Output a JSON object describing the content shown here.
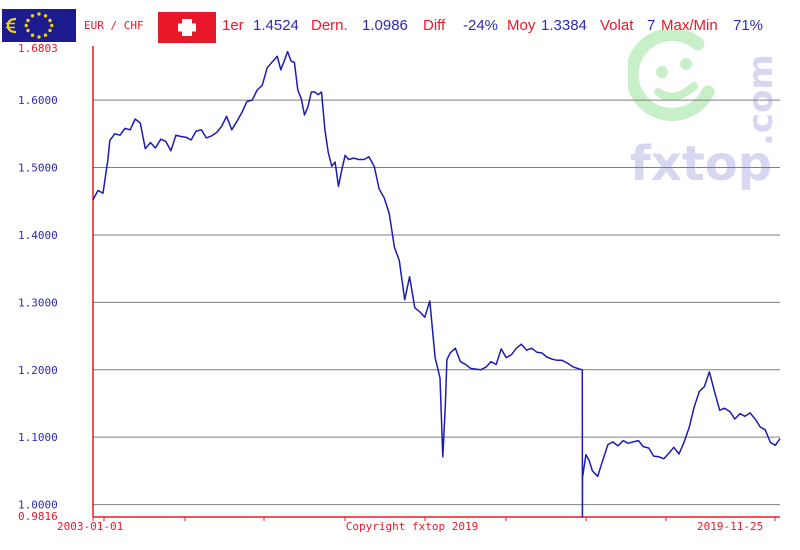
{
  "header": {
    "pair_label": "EUR / CHF",
    "first_label": "1er",
    "first_value": "1.4524",
    "last_label": "Dern.",
    "last_value": "1.0986",
    "diff_label": "Diff",
    "diff_value": "-24%",
    "avg_label": "Moy",
    "avg_value": "1.3384",
    "volat_label": "Volat",
    "volat_value": "7",
    "maxmin_label": "Max/Min",
    "maxmin_value": "71%"
  },
  "watermark": {
    "brand": "fxtop",
    "domain": ".com"
  },
  "colors": {
    "line": "#1c1cb4",
    "axis": "#e8182a",
    "grid": "#7f7f7f",
    "label": "#2b2bb6",
    "watermark": "#d7d7f2"
  },
  "icons": [
    "euro-flag-icon",
    "swiss-flag-icon",
    "fxtop-smiley-icon"
  ],
  "chart_data": {
    "type": "line",
    "title": "",
    "xlabel": "",
    "ylabel": "",
    "xlim": [
      "2003-01-01",
      "2019-11-25"
    ],
    "ylim": [
      0.9816,
      1.6803
    ],
    "grid": true,
    "x_ticks": [
      "2003-01-01",
      "2019-11-25"
    ],
    "x_caption": "Copyright fxtop 2019",
    "y_ticks": [
      "1.0000",
      "1.1000",
      "1.2000",
      "1.3000",
      "1.4000",
      "1.5000",
      "1.6000"
    ],
    "y_bounds": [
      "1.6803",
      "0.9816"
    ],
    "series": [
      {
        "x": [
          "2003-01-01",
          "2003-02-15",
          "2003-04-01",
          "2003-05-15",
          "2003-06-01",
          "2003-07-15",
          "2003-09-01",
          "2003-10-15",
          "2003-12-01",
          "2004-01-15",
          "2004-03-01",
          "2004-04-15",
          "2004-06-01",
          "2004-07-15",
          "2004-09-01",
          "2004-10-15",
          "2004-12-01",
          "2005-01-15",
          "2005-03-01",
          "2005-04-15",
          "2005-06-01",
          "2005-07-15",
          "2005-09-01",
          "2005-10-15",
          "2005-12-01",
          "2006-01-15",
          "2006-03-01",
          "2006-04-15",
          "2006-06-01",
          "2006-07-15",
          "2006-09-01",
          "2006-10-15",
          "2006-12-01",
          "2007-01-15",
          "2007-03-01",
          "2007-04-15",
          "2007-06-01",
          "2007-07-15",
          "2007-08-15",
          "2007-09-15",
          "2007-10-15",
          "2007-11-15",
          "2007-12-15",
          "2008-01-15",
          "2008-02-15",
          "2008-03-15",
          "2008-04-15",
          "2008-05-15",
          "2008-06-15",
          "2008-07-15",
          "2008-08-15",
          "2008-09-15",
          "2008-10-15",
          "2008-11-15",
          "2008-12-15",
          "2009-01-15",
          "2009-02-15",
          "2009-03-15",
          "2009-04-15",
          "2009-06-01",
          "2009-07-15",
          "2009-09-01",
          "2009-10-15",
          "2009-12-01",
          "2010-01-15",
          "2010-03-01",
          "2010-04-15",
          "2010-06-01",
          "2010-07-15",
          "2010-09-01",
          "2010-10-15",
          "2010-12-01",
          "2011-01-15",
          "2011-03-01",
          "2011-04-15",
          "2011-06-01",
          "2011-07-15",
          "2011-08-10",
          "2011-09-01",
          "2011-09-15",
          "2011-10-15",
          "2011-12-01",
          "2012-01-15",
          "2012-03-01",
          "2012-04-15",
          "2012-06-01",
          "2012-07-15",
          "2012-09-01",
          "2012-10-15",
          "2012-12-01",
          "2013-01-15",
          "2013-03-01",
          "2013-04-15",
          "2013-06-01",
          "2013-07-15",
          "2013-09-01",
          "2013-10-15",
          "2013-12-01",
          "2014-01-15",
          "2014-03-01",
          "2014-04-15",
          "2014-06-01",
          "2014-07-15",
          "2014-09-01",
          "2014-10-15",
          "2014-12-01",
          "2015-01-14",
          "2015-01-15",
          "2015-01-16",
          "2015-02-15",
          "2015-03-15",
          "2015-04-15",
          "2015-06-01",
          "2015-07-15",
          "2015-09-01",
          "2015-10-15",
          "2015-12-01",
          "2016-01-15",
          "2016-03-01",
          "2016-04-15",
          "2016-06-01",
          "2016-07-15",
          "2016-09-01",
          "2016-10-15",
          "2016-12-01",
          "2017-01-15",
          "2017-03-01",
          "2017-04-15",
          "2017-06-01",
          "2017-07-15",
          "2017-09-01",
          "2017-10-15",
          "2017-12-01",
          "2018-01-15",
          "2018-03-01",
          "2018-04-15",
          "2018-06-01",
          "2018-07-15",
          "2018-09-01",
          "2018-10-15",
          "2018-12-01",
          "2019-01-15",
          "2019-03-01",
          "2019-04-15",
          "2019-06-01",
          "2019-07-15",
          "2019-09-01",
          "2019-10-15",
          "2019-11-25"
        ],
        "values": [
          1.4524,
          1.466,
          1.462,
          1.512,
          1.54,
          1.55,
          1.548,
          1.558,
          1.556,
          1.572,
          1.566,
          1.528,
          1.537,
          1.529,
          1.542,
          1.539,
          1.525,
          1.548,
          1.546,
          1.545,
          1.541,
          1.554,
          1.556,
          1.544,
          1.547,
          1.552,
          1.561,
          1.576,
          1.556,
          1.568,
          1.582,
          1.598,
          1.6,
          1.615,
          1.622,
          1.648,
          1.657,
          1.665,
          1.645,
          1.658,
          1.672,
          1.658,
          1.656,
          1.615,
          1.602,
          1.578,
          1.59,
          1.612,
          1.612,
          1.608,
          1.612,
          1.555,
          1.522,
          1.502,
          1.508,
          1.472,
          1.498,
          1.518,
          1.512,
          1.514,
          1.512,
          1.512,
          1.516,
          1.502,
          1.468,
          1.455,
          1.432,
          1.382,
          1.362,
          1.304,
          1.338,
          1.292,
          1.286,
          1.278,
          1.302,
          1.218,
          1.188,
          1.071,
          1.146,
          1.215,
          1.225,
          1.232,
          1.212,
          1.208,
          1.202,
          1.201,
          1.2,
          1.204,
          1.212,
          1.208,
          1.231,
          1.218,
          1.222,
          1.232,
          1.238,
          1.229,
          1.232,
          1.226,
          1.225,
          1.219,
          1.216,
          1.214,
          1.214,
          1.21,
          1.205,
          1.202,
          1.2,
          0.9816,
          1.04,
          1.074,
          1.066,
          1.05,
          1.042,
          1.065,
          1.089,
          1.093,
          1.087,
          1.095,
          1.091,
          1.093,
          1.095,
          1.086,
          1.084,
          1.072,
          1.071,
          1.068,
          1.076,
          1.085,
          1.075,
          1.092,
          1.115,
          1.145,
          1.168,
          1.175,
          1.197,
          1.168,
          1.14,
          1.143,
          1.138,
          1.127,
          1.135,
          1.131,
          1.136,
          1.127,
          1.115,
          1.111,
          1.092,
          1.088,
          1.098
        ]
      }
    ]
  }
}
